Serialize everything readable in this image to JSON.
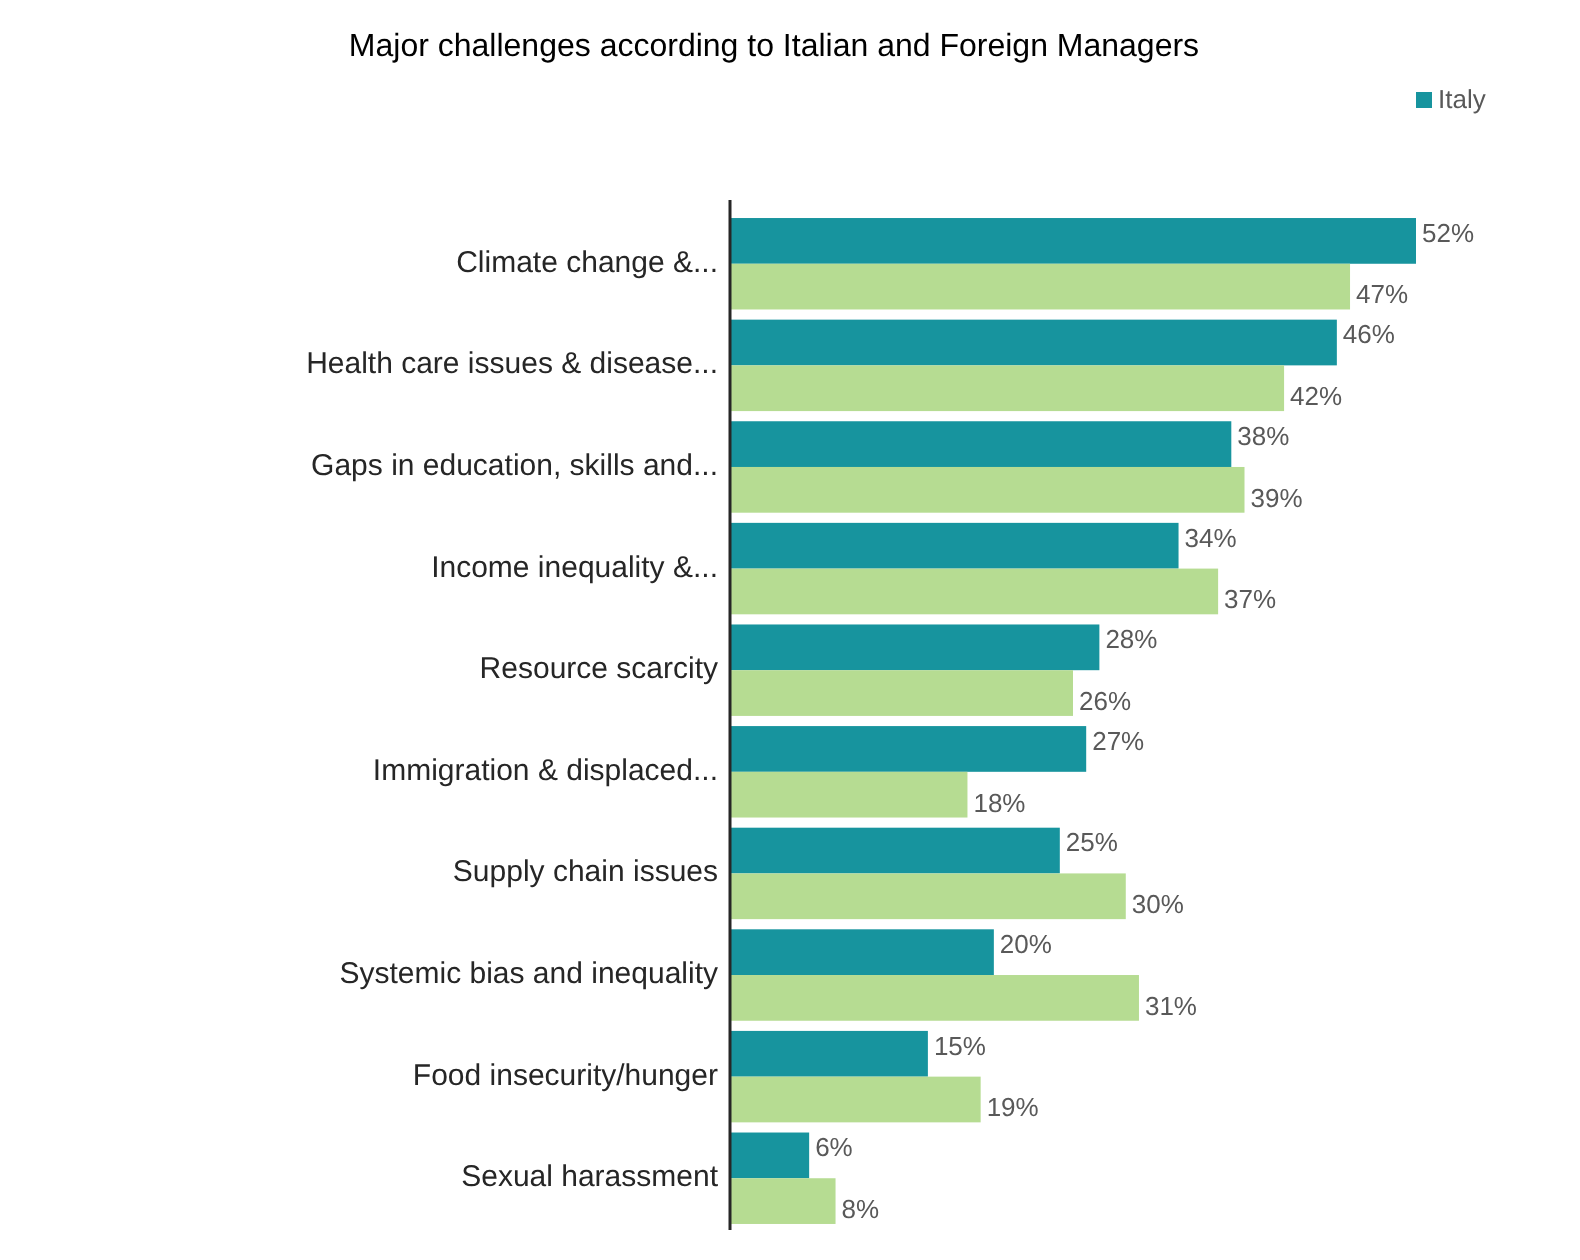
{
  "chart_data": {
    "type": "bar",
    "orientation": "horizontal",
    "title": "Major challenges according to Italian and Foreign Managers",
    "categories": [
      "Climate change &...",
      "Health care issues & disease...",
      "Gaps in education, skills and...",
      "Income inequality &...",
      "Resource scarcity",
      "Immigration & displaced...",
      "Supply chain issues",
      "Systemic bias and inequality",
      "Food insecurity/hunger",
      "Sexual harassment"
    ],
    "series": [
      {
        "name": "Italy",
        "color": "#17949e",
        "values": [
          52,
          46,
          38,
          34,
          28,
          27,
          25,
          20,
          15,
          6
        ],
        "value_labels": [
          "52%",
          "46%",
          "38%",
          "34%",
          "28%",
          "27%",
          "25%",
          "20%",
          "15%",
          "6%"
        ]
      },
      {
        "color": "#b6dc92",
        "values": [
          47,
          42,
          39,
          37,
          26,
          18,
          30,
          31,
          19,
          8
        ],
        "value_labels": [
          "47%",
          "42%",
          "39%",
          "37%",
          "26%",
          "18%",
          "30%",
          "31%",
          "19%",
          "8%"
        ]
      }
    ],
    "relative": false,
    "legend": "top right"
  }
}
